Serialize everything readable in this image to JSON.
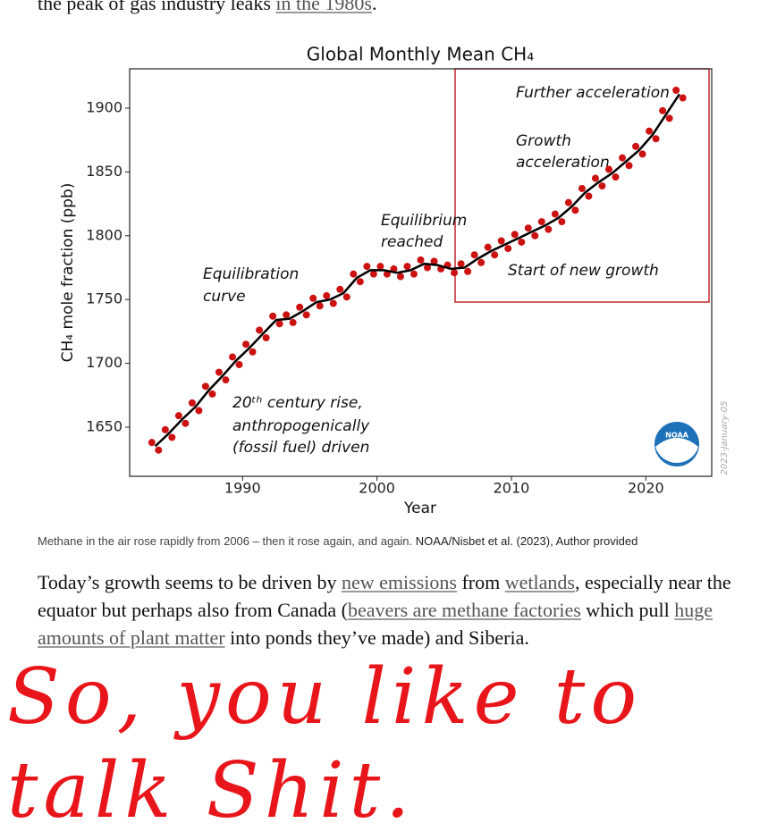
{
  "intro": {
    "parts": [
      "the peak of gas industry leaks ",
      "in the 1980s",
      "."
    ]
  },
  "chart_data": {
    "type": "line",
    "title": "Global Monthly Mean CH₄",
    "x_label": "Year",
    "y_label": "CH₄ mole fraction (ppb)",
    "side_note": "2023-January-05",
    "logo_text": "NOAA",
    "annotations": [
      "Further acceleration",
      "Growth",
      "acceleration",
      "Equilibrium",
      "reached",
      "Start of new growth",
      "Equilibration",
      "curve",
      "20ᵗʰ century rise,",
      "anthropogenically",
      "(fossil fuel) driven"
    ],
    "xlim": [
      1981.6,
      2024.9
    ],
    "ylim": [
      1611.5,
      1930.8
    ],
    "xticks": [
      1990,
      2000,
      2010,
      2020
    ],
    "yticks": [
      1650,
      1700,
      1750,
      1800,
      1850,
      1900
    ],
    "series": [
      {
        "color": "#cc1111",
        "marker": "dot",
        "x": [
          1983.25,
          1983.75,
          1984.25,
          1984.75,
          1985.25,
          1985.75,
          1986.25,
          1986.75,
          1987.25,
          1987.75,
          1988.25,
          1988.75,
          1989.25,
          1989.75,
          1990.25,
          1990.75,
          1991.25,
          1991.75,
          1992.25,
          1992.75,
          1993.25,
          1993.75,
          1994.25,
          1994.75,
          1995.25,
          1995.75,
          1996.25,
          1996.75,
          1997.25,
          1997.75,
          1998.25,
          1998.75,
          1999.25,
          1999.75,
          2000.25,
          2000.75,
          2001.25,
          2001.75,
          2002.25,
          2002.75,
          2003.25,
          2003.75,
          2004.25,
          2004.75,
          2005.25,
          2005.75,
          2006.25,
          2006.75,
          2007.25,
          2007.75,
          2008.25,
          2008.75,
          2009.25,
          2009.75,
          2010.25,
          2010.75,
          2011.25,
          2011.75,
          2012.25,
          2012.75,
          2013.25,
          2013.75,
          2014.25,
          2014.75,
          2015.25,
          2015.75,
          2016.25,
          2016.75,
          2017.25,
          2017.75,
          2018.25,
          2018.75,
          2019.25,
          2019.75,
          2020.25,
          2020.75,
          2021.25,
          2021.75,
          2022.25,
          2022.75
        ],
        "values": [
          1638,
          1632,
          1648,
          1642,
          1659,
          1653,
          1669,
          1663,
          1682,
          1676,
          1693,
          1687,
          1705,
          1699,
          1715,
          1709,
          1726,
          1720,
          1737,
          1731,
          1738,
          1732,
          1744,
          1738,
          1751,
          1745,
          1753,
          1747,
          1758,
          1752,
          1770,
          1764,
          1776,
          1770,
          1776,
          1770,
          1774,
          1768,
          1776,
          1770,
          1781,
          1775,
          1780,
          1774,
          1777,
          1771,
          1778,
          1772,
          1785,
          1779,
          1791,
          1785,
          1796,
          1790,
          1801,
          1795,
          1806,
          1800,
          1811,
          1805,
          1817,
          1811,
          1826,
          1820,
          1837,
          1831,
          1845,
          1839,
          1852,
          1846,
          1861,
          1855,
          1870,
          1864,
          1882,
          1876,
          1898,
          1892,
          1914,
          1908
        ]
      },
      {
        "color": "#000000",
        "marker": "line",
        "x": [
          1983.5,
          1984.5,
          1985.5,
          1986.5,
          1987.5,
          1988.5,
          1989.5,
          1990.5,
          1991.5,
          1992.5,
          1993.5,
          1994.5,
          1995.5,
          1996.5,
          1997.5,
          1998.5,
          1999.5,
          2000.5,
          2001.5,
          2002.5,
          2003.5,
          2004.5,
          2005.5,
          2006.5,
          2007.5,
          2008.5,
          2009.5,
          2010.5,
          2011.5,
          2012.5,
          2013.5,
          2014.5,
          2015.5,
          2016.5,
          2017.5,
          2018.5,
          2019.5,
          2020.5,
          2021.5,
          2022.5
        ],
        "values": [
          1635,
          1645,
          1656,
          1666,
          1679,
          1690,
          1702,
          1712,
          1723,
          1734,
          1735,
          1741,
          1748,
          1750,
          1755,
          1767,
          1773,
          1773,
          1771,
          1773,
          1778,
          1777,
          1774,
          1775,
          1782,
          1788,
          1793,
          1798,
          1803,
          1808,
          1814,
          1823,
          1834,
          1842,
          1849,
          1858,
          1867,
          1879,
          1895,
          1911
        ]
      }
    ]
  },
  "caption": {
    "text": "Methane in the air rose rapidly from 2006 – then it rose again, and again.",
    "credit": "NOAA/Nisbet et al. (2023), Author provided"
  },
  "body": {
    "parts": [
      "Today’s growth seems to be driven by ",
      "new emissions",
      " from ",
      "wetlands",
      ", especially near the equator but perhaps also from Canada (",
      "beavers are methane factories",
      " which pull ",
      "huge amounts of plant matter",
      " into ponds they’ve made) and Siberia."
    ]
  },
  "handwriting": [
    "So, you like to",
    "talk Shit."
  ]
}
